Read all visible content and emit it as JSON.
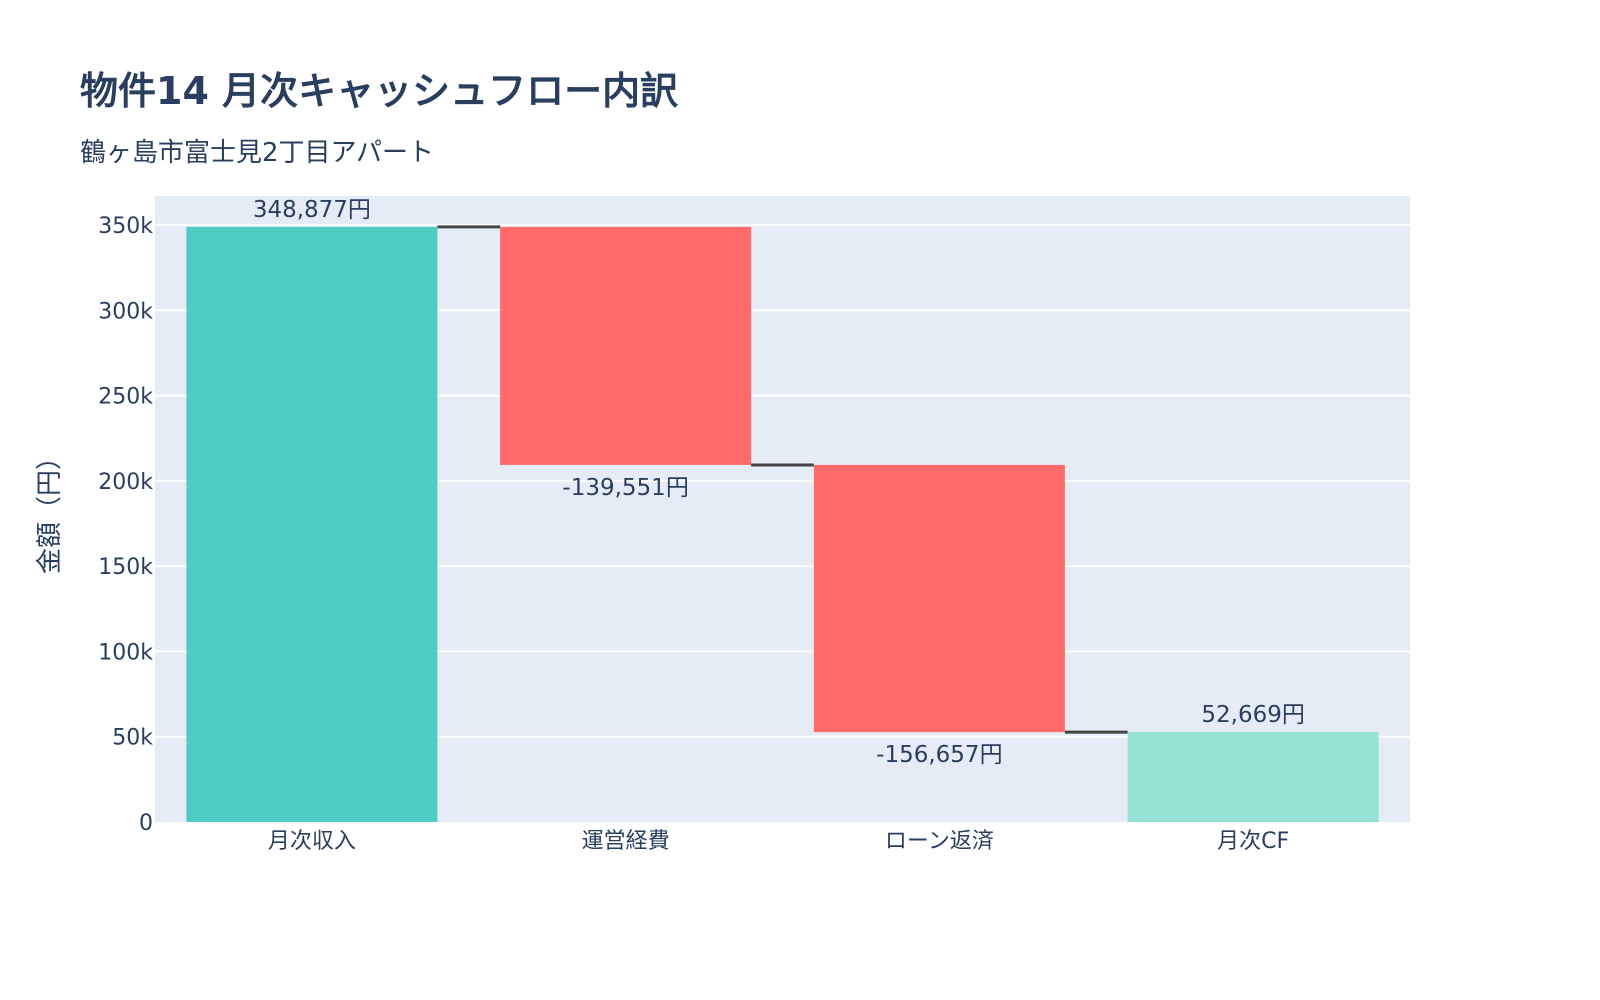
{
  "chart_data": {
    "type": "waterfall",
    "title": "物件14 月次キャッシュフロー内訳",
    "subtitle": "鶴ヶ島市富士見2丁目アパート",
    "ylabel": "金額（円）",
    "xlabel": "",
    "categories": [
      "月次収入",
      "運営経費",
      "ローン返済",
      "月次CF"
    ],
    "measures": [
      "absolute",
      "relative",
      "relative",
      "total"
    ],
    "values": [
      348877,
      -139551,
      -156657,
      52669
    ],
    "data_labels": [
      "348,877円",
      "-139,551円",
      "-156,657円",
      "52,669円"
    ],
    "ylim": [
      0,
      367000
    ],
    "yticks": [
      0,
      50000,
      100000,
      150000,
      200000,
      250000,
      300000,
      350000
    ],
    "ytick_labels": [
      "0",
      "50k",
      "100k",
      "150k",
      "200k",
      "250k",
      "300k",
      "350k"
    ],
    "grid": true,
    "legend": "none",
    "colors": {
      "absolute": "#4ecdc4",
      "decreasing": "#ff6b6b",
      "total": "#95e1d3",
      "connector": "#444444",
      "plot_bg": "#e5ecf6",
      "text": "#2a3f5f"
    }
  }
}
